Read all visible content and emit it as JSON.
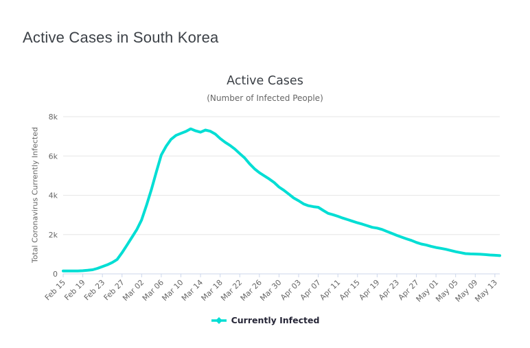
{
  "page": {
    "title": "Active Cases in South Korea"
  },
  "chart": {
    "title": "Active Cases",
    "subtitle": "(Number of Infected People)",
    "y_axis_title": "Total Coronavirus Currently Infected",
    "legend_label": "Currently Infected",
    "colors": {
      "line": "#00DED4",
      "axis_line": "#ccd6eb",
      "gridline": "#e6e6e6",
      "page_title_text": "#3c4147",
      "chart_title_text": "#3a3f45",
      "subtitle_text": "#666666",
      "axis_label_text": "#666666",
      "legend_text": "#262637"
    }
  },
  "chart_data": {
    "type": "line",
    "title": "Active Cases",
    "subtitle": "(Number of Infected People)",
    "xlabel": "",
    "ylabel": "Total Coronavirus Currently Infected",
    "ylim": [
      0,
      8000
    ],
    "y_ticks": [
      "0",
      "2k",
      "4k",
      "6k",
      "8k"
    ],
    "grid": true,
    "legend_position": "bottom",
    "x_start_date": "Feb 15",
    "x_end_date": "May 15",
    "x_tick_every": 4,
    "x_tick_labels": [
      "Feb 15",
      "Feb 19",
      "Feb 23",
      "Feb 27",
      "Mar 02",
      "Mar 06",
      "Mar 10",
      "Mar 14",
      "Mar 18",
      "Mar 22",
      "Mar 26",
      "Mar 30",
      "Apr 03",
      "Apr 07",
      "Apr 11",
      "Apr 15",
      "Apr 19",
      "Apr 23",
      "Apr 27",
      "May 01",
      "May 05",
      "May 09",
      "May 13"
    ],
    "series": [
      {
        "name": "Currently Infected",
        "color": "#00DED4",
        "values": [
          150,
          150,
          150,
          150,
          160,
          180,
          210,
          280,
          370,
          460,
          580,
          730,
          1080,
          1460,
          1850,
          2250,
          2750,
          3500,
          4300,
          5200,
          6050,
          6500,
          6850,
          7050,
          7150,
          7250,
          7380,
          7280,
          7210,
          7320,
          7260,
          7120,
          6890,
          6700,
          6540,
          6350,
          6120,
          5900,
          5600,
          5350,
          5150,
          4990,
          4830,
          4650,
          4420,
          4250,
          4060,
          3860,
          3720,
          3560,
          3470,
          3420,
          3390,
          3230,
          3080,
          3010,
          2930,
          2840,
          2760,
          2680,
          2600,
          2530,
          2450,
          2370,
          2330,
          2260,
          2160,
          2060,
          1960,
          1870,
          1780,
          1700,
          1600,
          1520,
          1470,
          1400,
          1340,
          1300,
          1250,
          1190,
          1130,
          1080,
          1030,
          1015,
          1010,
          1000,
          980,
          960,
          945,
          930
        ]
      }
    ]
  }
}
